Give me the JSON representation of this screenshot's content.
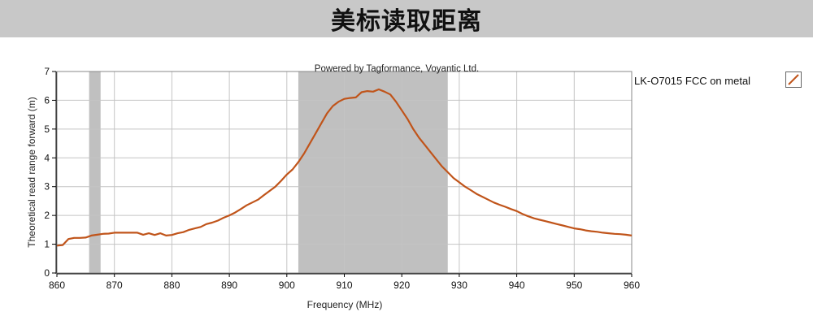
{
  "banner": {
    "title": "美标读取距离"
  },
  "chart_data": {
    "type": "line",
    "title": "Powered by Tagformance, Voyantic Ltd.",
    "xlabel": "Frequency (MHz)",
    "ylabel": "Theoretical read range forward (m)",
    "xlim": [
      860,
      960
    ],
    "ylim": [
      0,
      7
    ],
    "xticks": [
      860,
      870,
      880,
      890,
      900,
      910,
      920,
      930,
      940,
      950,
      960
    ],
    "yticks": [
      0,
      1,
      2,
      3,
      4,
      5,
      6,
      7
    ],
    "grid": true,
    "legend_position": "right",
    "shaded_bands": [
      [
        865.6,
        867.6
      ],
      [
        902,
        928
      ]
    ],
    "series": [
      {
        "name": "LK-O7015 FCC on metal",
        "color": "#c0541a",
        "x": [
          860,
          861,
          862,
          863,
          864,
          865,
          866,
          867,
          868,
          869,
          870,
          871,
          872,
          873,
          874,
          875,
          876,
          877,
          878,
          879,
          880,
          881,
          882,
          883,
          884,
          885,
          886,
          887,
          888,
          889,
          890,
          891,
          892,
          893,
          894,
          895,
          896,
          897,
          898,
          899,
          900,
          901,
          902,
          903,
          904,
          905,
          906,
          907,
          908,
          909,
          910,
          911,
          912,
          913,
          914,
          915,
          916,
          917,
          918,
          919,
          920,
          921,
          922,
          923,
          924,
          925,
          926,
          927,
          928,
          929,
          930,
          931,
          932,
          933,
          934,
          935,
          936,
          937,
          938,
          939,
          940,
          941,
          942,
          943,
          944,
          945,
          946,
          947,
          948,
          949,
          950,
          951,
          952,
          953,
          954,
          955,
          956,
          957,
          958,
          959,
          960
        ],
        "y": [
          0.95,
          0.97,
          1.18,
          1.22,
          1.22,
          1.23,
          1.3,
          1.33,
          1.36,
          1.37,
          1.4,
          1.4,
          1.4,
          1.4,
          1.4,
          1.33,
          1.38,
          1.32,
          1.38,
          1.3,
          1.32,
          1.38,
          1.42,
          1.5,
          1.55,
          1.6,
          1.7,
          1.75,
          1.82,
          1.92,
          2.0,
          2.1,
          2.22,
          2.35,
          2.45,
          2.55,
          2.7,
          2.85,
          3.0,
          3.2,
          3.42,
          3.6,
          3.85,
          4.15,
          4.5,
          4.85,
          5.2,
          5.55,
          5.8,
          5.95,
          6.05,
          6.08,
          6.1,
          6.28,
          6.32,
          6.3,
          6.38,
          6.3,
          6.2,
          5.95,
          5.65,
          5.35,
          5.0,
          4.7,
          4.45,
          4.2,
          3.95,
          3.7,
          3.5,
          3.3,
          3.15,
          3.0,
          2.88,
          2.75,
          2.65,
          2.55,
          2.45,
          2.37,
          2.3,
          2.22,
          2.15,
          2.05,
          1.97,
          1.9,
          1.85,
          1.8,
          1.75,
          1.7,
          1.65,
          1.6,
          1.55,
          1.52,
          1.48,
          1.45,
          1.43,
          1.4,
          1.38,
          1.36,
          1.35,
          1.33,
          1.3
        ]
      }
    ]
  }
}
